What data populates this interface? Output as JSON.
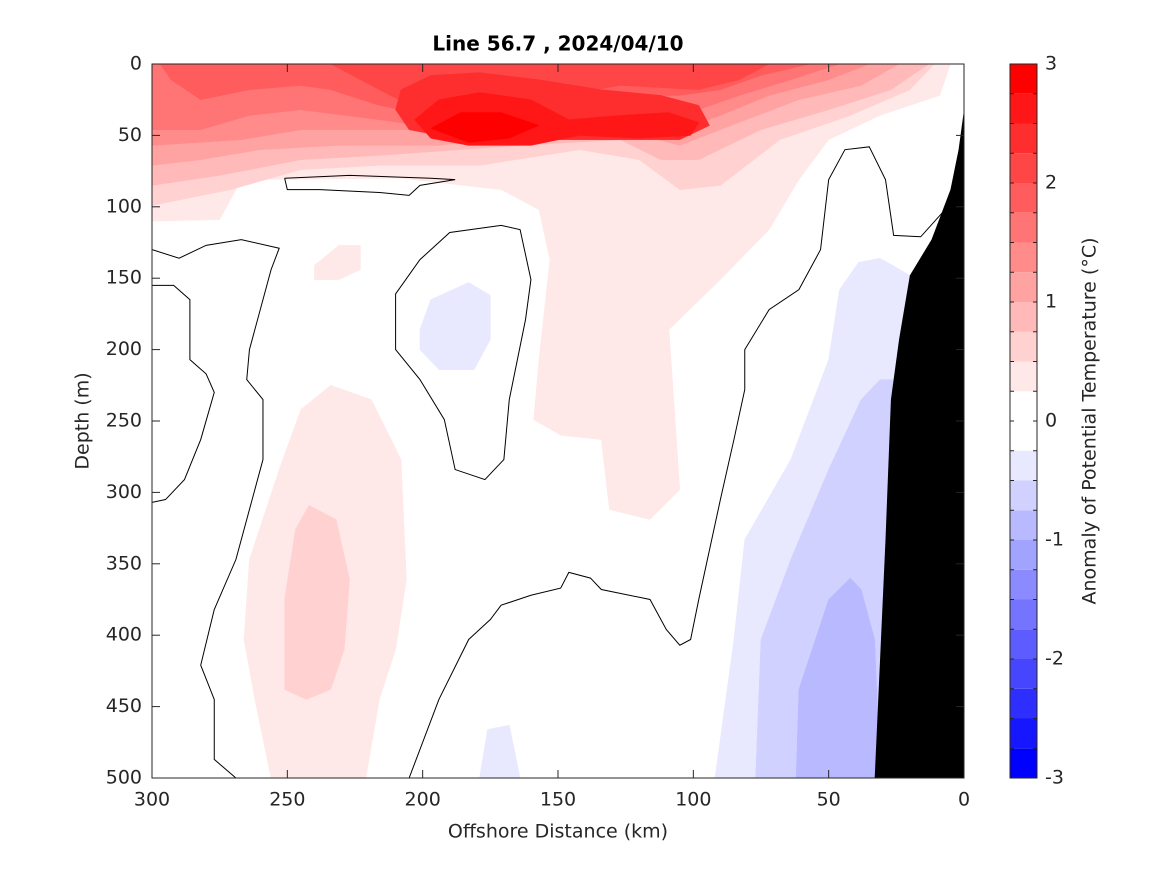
{
  "chart_data": {
    "type": "contourf",
    "title": "Line 56.7 , 2024/04/10",
    "xlabel": "Offshore Distance (km)",
    "ylabel": "Depth (m)",
    "xlim": [
      300,
      0
    ],
    "ylim": [
      500,
      0
    ],
    "xticks": [
      300,
      250,
      200,
      150,
      100,
      50,
      0
    ],
    "yticks": [
      0,
      50,
      100,
      150,
      200,
      250,
      300,
      350,
      400,
      450,
      500
    ],
    "cmap": {
      "low": "#0000ff",
      "mid": "#ffffff",
      "high": "#ff0000"
    },
    "background": "#ffffff",
    "colorbar": {
      "label": "Anomaly of Potential Temperature (°C)",
      "lim": [
        -3,
        3
      ],
      "levels": [
        -3,
        -2.75,
        -2.5,
        -2.25,
        -2,
        -1.75,
        -1.5,
        -1.25,
        -1,
        -0.75,
        -0.5,
        -0.25,
        0,
        0.25,
        0.5,
        0.75,
        1,
        1.25,
        1.5,
        1.75,
        2,
        2.25,
        2.5,
        2.75,
        3
      ],
      "ticks": [
        3,
        2,
        1,
        0,
        -1,
        -2,
        -3
      ]
    },
    "regions": [
      {
        "value": 0.375,
        "x": [
          300,
          5,
          9,
          31,
          50,
          61,
          72,
          90,
          109,
          105,
          116,
          131,
          134,
          149,
          159,
          157,
          153,
          157,
          171,
          208,
          267,
          275,
          300
        ],
        "y": [
          0,
          0,
          22,
          36,
          53,
          81,
          116,
          151,
          186,
          298,
          319,
          312,
          263,
          260,
          249,
          207,
          137,
          102,
          88,
          80,
          81,
          109,
          110
        ]
      },
      {
        "value": 0.375,
        "x": [
          256,
          262,
          266,
          264,
          253,
          245,
          234,
          219,
          208,
          206,
          210,
          216,
          221
        ],
        "y": [
          500,
          445,
          403,
          347,
          284,
          242,
          225,
          235,
          277,
          361,
          410,
          445,
          500
        ]
      },
      {
        "value": 0.625,
        "x": [
          251,
          251,
          247,
          242,
          232,
          227,
          229,
          234,
          243
        ],
        "y": [
          438,
          375,
          326,
          309,
          319,
          361,
          410,
          438,
          445
        ]
      },
      {
        "value": 0.375,
        "x": [
          240,
          231,
          223,
          223,
          231,
          240
        ],
        "y": [
          141,
          127,
          127,
          144,
          151,
          151
        ]
      },
      {
        "value": -0.375,
        "x": [
          201,
          197,
          183,
          175,
          175,
          181,
          194,
          201
        ],
        "y": [
          186,
          165,
          153,
          162,
          193,
          214,
          214,
          200
        ]
      },
      {
        "value": -0.375,
        "x": [
          179,
          176,
          168,
          164
        ],
        "y": [
          500,
          466,
          463,
          500
        ]
      },
      {
        "value": -0.375,
        "x": [
          92,
          85,
          81,
          64,
          50,
          46,
          39,
          31,
          20,
          0,
          0
        ],
        "y": [
          500,
          403,
          333,
          277,
          207,
          158,
          139,
          136,
          148,
          165,
          500
        ]
      },
      {
        "value": -0.625,
        "x": [
          77,
          75,
          64,
          50,
          38,
          31,
          0,
          0
        ],
        "y": [
          500,
          403,
          347,
          284,
          235,
          221,
          221,
          500
        ]
      },
      {
        "value": -0.875,
        "x": [
          62,
          61,
          50,
          42,
          38,
          33,
          31
        ],
        "y": [
          500,
          438,
          375,
          360,
          368,
          403,
          500
        ]
      },
      {
        "value": 0.625,
        "x": [
          300,
          11,
          20,
          42,
          68,
          90,
          105,
          120,
          142,
          179,
          216,
          245,
          271,
          300
        ],
        "y": [
          0,
          0,
          18,
          36,
          53,
          85,
          88,
          67,
          60,
          71,
          71,
          74,
          88,
          99
        ]
      },
      {
        "value": 0.875,
        "x": [
          300,
          13,
          27,
          50,
          75,
          98,
          112,
          127,
          164,
          216,
          245,
          275,
          300
        ],
        "y": [
          0,
          0,
          18,
          32,
          46,
          67,
          67,
          53,
          57,
          64,
          67,
          78,
          85
        ]
      },
      {
        "value": 1.125,
        "x": [
          300,
          24,
          38,
          61,
          86,
          105,
          127,
          164,
          194,
          231,
          260,
          282,
          300
        ],
        "y": [
          0,
          0,
          15,
          25,
          43,
          57,
          46,
          50,
          57,
          57,
          60,
          67,
          71
        ]
      },
      {
        "value": 1.375,
        "x": [
          300,
          35,
          50,
          72,
          90,
          105,
          134,
          179,
          245,
          267,
          300
        ],
        "y": [
          0,
          0,
          11,
          22,
          36,
          46,
          43,
          46,
          46,
          53,
          57
        ]
      },
      {
        "value": 1.625,
        "x": [
          300,
          46,
          64,
          83,
          98,
          127,
          171,
          201,
          216,
          245,
          264,
          282,
          300
        ],
        "y": [
          0,
          0,
          11,
          22,
          32,
          32,
          39,
          43,
          39,
          32,
          36,
          46,
          46
        ]
      },
      {
        "value": 1.875,
        "x": [
          297,
          57,
          75,
          90,
          105,
          134,
          171,
          197,
          216,
          234,
          245,
          264,
          282,
          293
        ],
        "y": [
          0,
          0,
          8,
          18,
          22,
          22,
          32,
          36,
          29,
          18,
          15,
          18,
          25,
          11
        ]
      },
      {
        "value": 2.125,
        "x": [
          234,
          72,
          83,
          98,
          127,
          157,
          186,
          201,
          212,
          223
        ],
        "y": [
          0,
          0,
          11,
          18,
          15,
          25,
          32,
          32,
          22,
          11
        ]
      },
      {
        "value": 2.375,
        "x": [
          210,
          208,
          197,
          179,
          157,
          134,
          112,
          98,
          94,
          105,
          127,
          157,
          186,
          205
        ],
        "y": [
          32,
          18,
          8,
          6,
          11,
          18,
          22,
          29,
          43,
          53,
          53,
          53,
          53,
          46
        ]
      },
      {
        "value": 2.625,
        "x": [
          203,
          194,
          179,
          160,
          146,
          127,
          109,
          98,
          101,
          120,
          142,
          160,
          183,
          197
        ],
        "y": [
          39,
          25,
          20,
          25,
          39,
          36,
          34,
          41,
          50,
          52,
          50,
          57,
          57,
          52
        ]
      },
      {
        "value": 2.875,
        "x": [
          197,
          186,
          171,
          157,
          168,
          183
        ],
        "y": [
          45,
          34,
          34,
          43,
          52,
          55
        ]
      }
    ],
    "contour_color": "#000000",
    "contours": [
      {
        "level": 0,
        "x": [
          300,
          290,
          280,
          267,
          253,
          256,
          259,
          264,
          265,
          259,
          259,
          266,
          269,
          277,
          282,
          277,
          277,
          269
        ],
        "y": [
          130,
          136,
          127,
          123,
          129,
          144,
          165,
          200,
          221,
          235,
          277,
          326,
          347,
          382,
          421,
          445,
          487,
          500
        ]
      },
      {
        "level": 0,
        "x": [
          300,
          292,
          286,
          286,
          280,
          277,
          282,
          288,
          295,
          300
        ],
        "y": [
          155,
          155,
          165,
          207,
          217,
          230,
          263,
          291,
          305,
          307
        ]
      },
      {
        "level": 0,
        "x": [
          251,
          227,
          197,
          188,
          201,
          205,
          216,
          238,
          250,
          251
        ],
        "y": [
          80,
          78,
          80,
          81,
          85,
          92,
          90,
          88,
          88,
          80
        ]
      },
      {
        "level": 0,
        "x": [
          171,
          164,
          160,
          162,
          168,
          170,
          177,
          188,
          192,
          201,
          210,
          210,
          201,
          190,
          171
        ],
        "y": [
          113,
          116,
          151,
          179,
          235,
          277,
          291,
          284,
          249,
          221,
          200,
          161,
          137,
          118,
          113
        ]
      },
      {
        "level": 0,
        "x": [
          205,
          194,
          183,
          175,
          171,
          160,
          149,
          146,
          138,
          134,
          116,
          110,
          105,
          101,
          98,
          90,
          85,
          81,
          81,
          72,
          61,
          53,
          50,
          44,
          35,
          29,
          26,
          16,
          7
        ],
        "y": [
          500,
          445,
          403,
          389,
          379,
          372,
          367,
          356,
          360,
          368,
          375,
          396,
          407,
          403,
          375,
          305,
          263,
          228,
          200,
          172,
          158,
          130,
          81,
          60,
          58,
          81,
          120,
          121,
          102
        ]
      }
    ],
    "bottom": {
      "color": "#000000",
      "x": [
        33,
        29,
        27,
        24,
        20,
        12,
        5,
        2,
        0,
        0
      ],
      "y": [
        500,
        333,
        235,
        193,
        148,
        123,
        88,
        60,
        32,
        500
      ]
    }
  }
}
